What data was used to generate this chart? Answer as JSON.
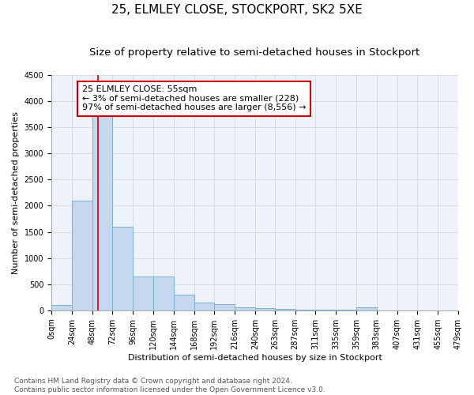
{
  "title": "25, ELMLEY CLOSE, STOCKPORT, SK2 5XE",
  "subtitle": "Size of property relative to semi-detached houses in Stockport",
  "xlabel": "Distribution of semi-detached houses by size in Stockport",
  "ylabel": "Number of semi-detached properties",
  "footer_line1": "Contains HM Land Registry data © Crown copyright and database right 2024.",
  "footer_line2": "Contains public sector information licensed under the Open Government Licence v3.0.",
  "annotation_title": "25 ELMLEY CLOSE: 55sqm",
  "annotation_line1": "← 3% of semi-detached houses are smaller (228)",
  "annotation_line2": "97% of semi-detached houses are larger (8,556) →",
  "property_size": 55,
  "bin_edges": [
    0,
    24,
    48,
    72,
    96,
    120,
    144,
    168,
    192,
    216,
    240,
    263,
    287,
    311,
    335,
    359,
    383,
    407,
    431,
    455,
    479
  ],
  "bin_counts": [
    100,
    2100,
    3750,
    1600,
    650,
    650,
    295,
    150,
    120,
    60,
    40,
    25,
    18,
    12,
    8,
    60,
    5,
    3,
    3,
    3
  ],
  "bar_color": "#c5d8ef",
  "bar_edge_color": "#7bafd4",
  "vline_color": "#cc0000",
  "vline_x": 55,
  "ylim": [
    0,
    4500
  ],
  "yticks": [
    0,
    500,
    1000,
    1500,
    2000,
    2500,
    3000,
    3500,
    4000,
    4500
  ],
  "grid_color": "#cccccc",
  "bg_color": "#eef2fa",
  "annotation_box_color": "#ffffff",
  "annotation_box_edge": "#cc0000",
  "title_fontsize": 11,
  "subtitle_fontsize": 9.5,
  "axis_label_fontsize": 8,
  "tick_fontsize": 7,
  "annotation_fontsize": 8,
  "footer_fontsize": 6.5
}
